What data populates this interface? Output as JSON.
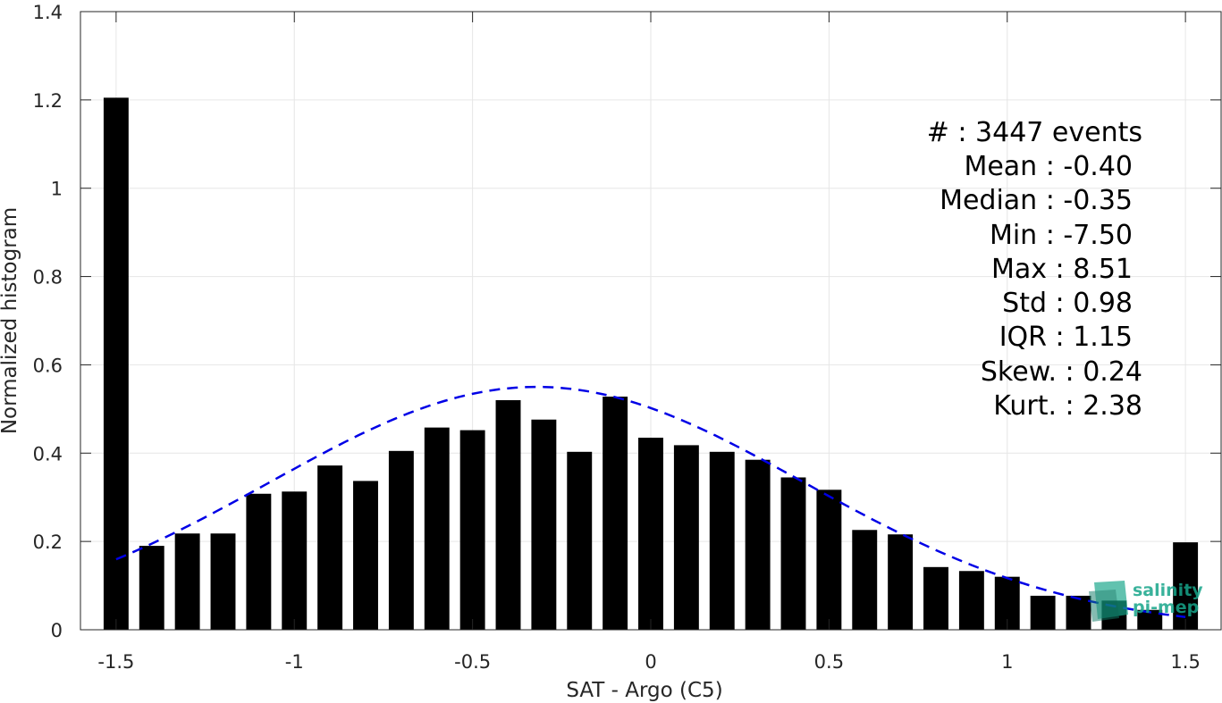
{
  "chart_data": {
    "type": "bar",
    "title": "",
    "xlabel": "SAT - Argo (C5)",
    "ylabel": "Normalized histogram",
    "xlim": [
      -1.6,
      1.6
    ],
    "ylim": [
      0,
      1.4
    ],
    "grid": true,
    "x_ticks": [
      "-1.5",
      "-1",
      "-0.5",
      "0",
      "0.5",
      "1",
      "1.5"
    ],
    "x_tick_values": [
      -1.5,
      -1,
      -0.5,
      0,
      0.5,
      1,
      1.5
    ],
    "y_ticks": [
      "0",
      "0.2",
      "0.4",
      "0.6",
      "0.8",
      "1",
      "1.2",
      "1.4"
    ],
    "y_tick_values": [
      0,
      0.2,
      0.4,
      0.6,
      0.8,
      1.0,
      1.2,
      1.4
    ],
    "bin_width": 0.1,
    "x": [
      -1.5,
      -1.4,
      -1.3,
      -1.2,
      -1.1,
      -1.0,
      -0.9,
      -0.8,
      -0.7,
      -0.6,
      -0.5,
      -0.4,
      -0.3,
      -0.2,
      -0.1,
      0.0,
      0.1,
      0.2,
      0.3,
      0.4,
      0.5,
      0.6,
      0.7,
      0.8,
      0.9,
      1.0,
      1.1,
      1.2,
      1.3,
      1.4,
      1.5
    ],
    "values": [
      1.205,
      0.19,
      0.218,
      0.218,
      0.308,
      0.313,
      0.372,
      0.337,
      0.405,
      0.458,
      0.452,
      0.52,
      0.476,
      0.403,
      0.528,
      0.435,
      0.418,
      0.403,
      0.385,
      0.345,
      0.317,
      0.226,
      0.216,
      0.142,
      0.133,
      0.12,
      0.077,
      0.077,
      0.066,
      0.045,
      0.198
    ],
    "fit_curve": {
      "style": "dashed",
      "color": "#0000e6",
      "mean": -0.32,
      "std": 0.75,
      "peak": 0.55,
      "x_range": [
        -1.5,
        1.5
      ]
    },
    "bar_color": "#000000",
    "stats": [
      "#  : 3447 events",
      "Mean : -0.40",
      "Median : -0.35",
      "Min : -7.50",
      "Max : 8.51",
      "Std : 0.98",
      "IQR : 1.15",
      "Skew. : 0.24",
      "Kurt. : 2.38"
    ]
  },
  "logo": {
    "line1": "salinity",
    "line2": "pi-mep",
    "color": "#17a58a"
  }
}
